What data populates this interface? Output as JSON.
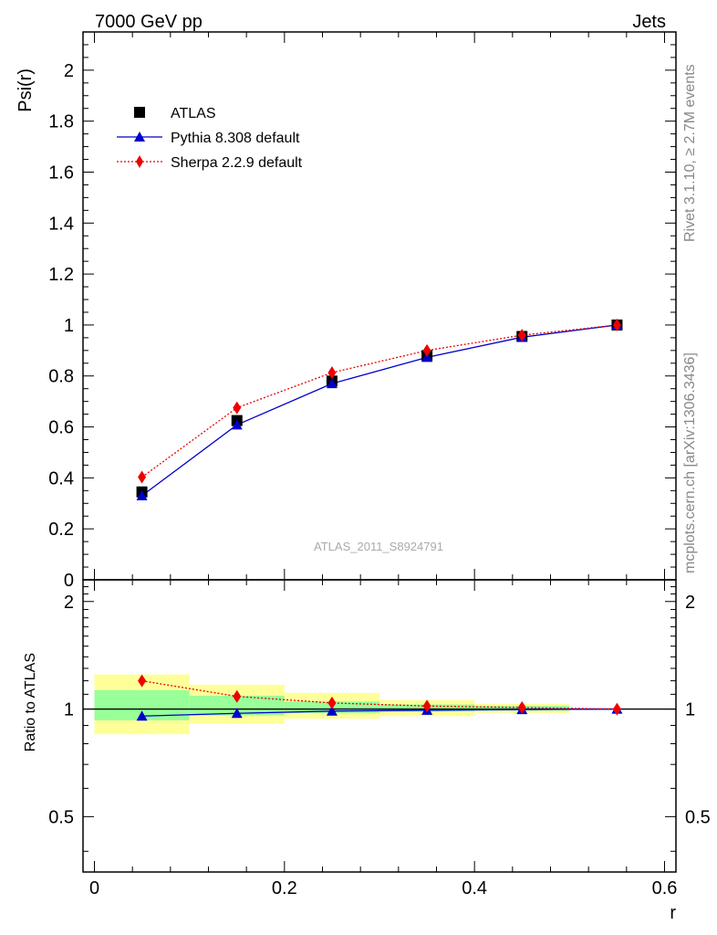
{
  "header": {
    "left": "7000 GeV pp",
    "right": "Jets"
  },
  "side_labels": {
    "rivet": "Rivet 3.1.10, ≥ 2.7M events",
    "mcplots": "mcplots.cern.ch [arXiv:1306.3436]"
  },
  "watermark": "ATLAS_2011_S8924791",
  "colors": {
    "atlas": "#000000",
    "pythia": "#0000cc",
    "sherpa": "#ee0000",
    "band_inner": "#99ff99",
    "band_outer": "#ffff99"
  },
  "chart_data": [
    {
      "type": "line",
      "panel": "main",
      "xlabel": "",
      "ylabel": "Psi(r)",
      "xlim": [
        -0.012,
        0.612
      ],
      "ylim": [
        0,
        2.15
      ],
      "yticks": [
        0,
        0.2,
        0.4,
        0.6,
        0.8,
        1,
        1.2,
        1.4,
        1.6,
        1.8,
        2
      ],
      "ytick_labels": [
        "0",
        "0.2",
        "0.4",
        "0.6",
        "0.8",
        "1",
        "1.2",
        "1.4",
        "1.6",
        "1.8",
        "2"
      ],
      "legend_position": "top-left",
      "x": [
        0.05,
        0.15,
        0.25,
        0.35,
        0.45,
        0.55
      ],
      "series": [
        {
          "name": "ATLAS",
          "marker": "square",
          "line": "none",
          "values": [
            0.345,
            0.625,
            0.78,
            0.88,
            0.955,
            1.0
          ]
        },
        {
          "name": "Pythia 8.308 default",
          "marker": "triangle",
          "line": "solid",
          "values": [
            0.33,
            0.608,
            0.77,
            0.873,
            0.952,
            1.0
          ]
        },
        {
          "name": "Sherpa 2.2.9 default",
          "marker": "diamond",
          "line": "dotted",
          "values": [
            0.403,
            0.675,
            0.813,
            0.9,
            0.96,
            1.0
          ]
        }
      ]
    },
    {
      "type": "line",
      "panel": "ratio",
      "xlabel": "r",
      "ylabel": "Ratio to ATLAS",
      "xlim": [
        -0.012,
        0.612
      ],
      "ylim": [
        0.35,
        2.3
      ],
      "xticks": [
        0,
        0.2,
        0.4,
        0.6
      ],
      "xtick_labels": [
        "0",
        "0.2",
        "0.4",
        "0.6"
      ],
      "yticks": [
        0.5,
        1,
        2
      ],
      "ytick_labels": [
        "0.5",
        "1",
        "2"
      ],
      "reference_line": 1,
      "x": [
        0.05,
        0.15,
        0.25,
        0.35,
        0.45,
        0.55
      ],
      "bands": [
        {
          "x0": 0.0,
          "x1": 0.1,
          "inner": [
            0.93,
            1.13
          ],
          "outer": [
            0.85,
            1.25
          ]
        },
        {
          "x0": 0.1,
          "x1": 0.2,
          "inner": [
            0.96,
            1.09
          ],
          "outer": [
            0.91,
            1.17
          ]
        },
        {
          "x0": 0.2,
          "x1": 0.3,
          "inner": [
            0.975,
            1.05
          ],
          "outer": [
            0.94,
            1.11
          ]
        },
        {
          "x0": 0.3,
          "x1": 0.4,
          "inner": [
            0.985,
            1.03
          ],
          "outer": [
            0.955,
            1.06
          ]
        },
        {
          "x0": 0.4,
          "x1": 0.5,
          "inner": [
            0.99,
            1.02
          ],
          "outer": [
            0.975,
            1.035
          ]
        }
      ],
      "series": [
        {
          "name": "Pythia 8.308 default",
          "marker": "triangle",
          "line": "solid",
          "values": [
            0.956,
            0.973,
            0.987,
            0.992,
            0.997,
            1.0
          ]
        },
        {
          "name": "Sherpa 2.2.9 default",
          "marker": "diamond",
          "line": "dotted",
          "values": [
            1.2,
            1.085,
            1.04,
            1.02,
            1.01,
            1.0
          ]
        }
      ]
    }
  ]
}
